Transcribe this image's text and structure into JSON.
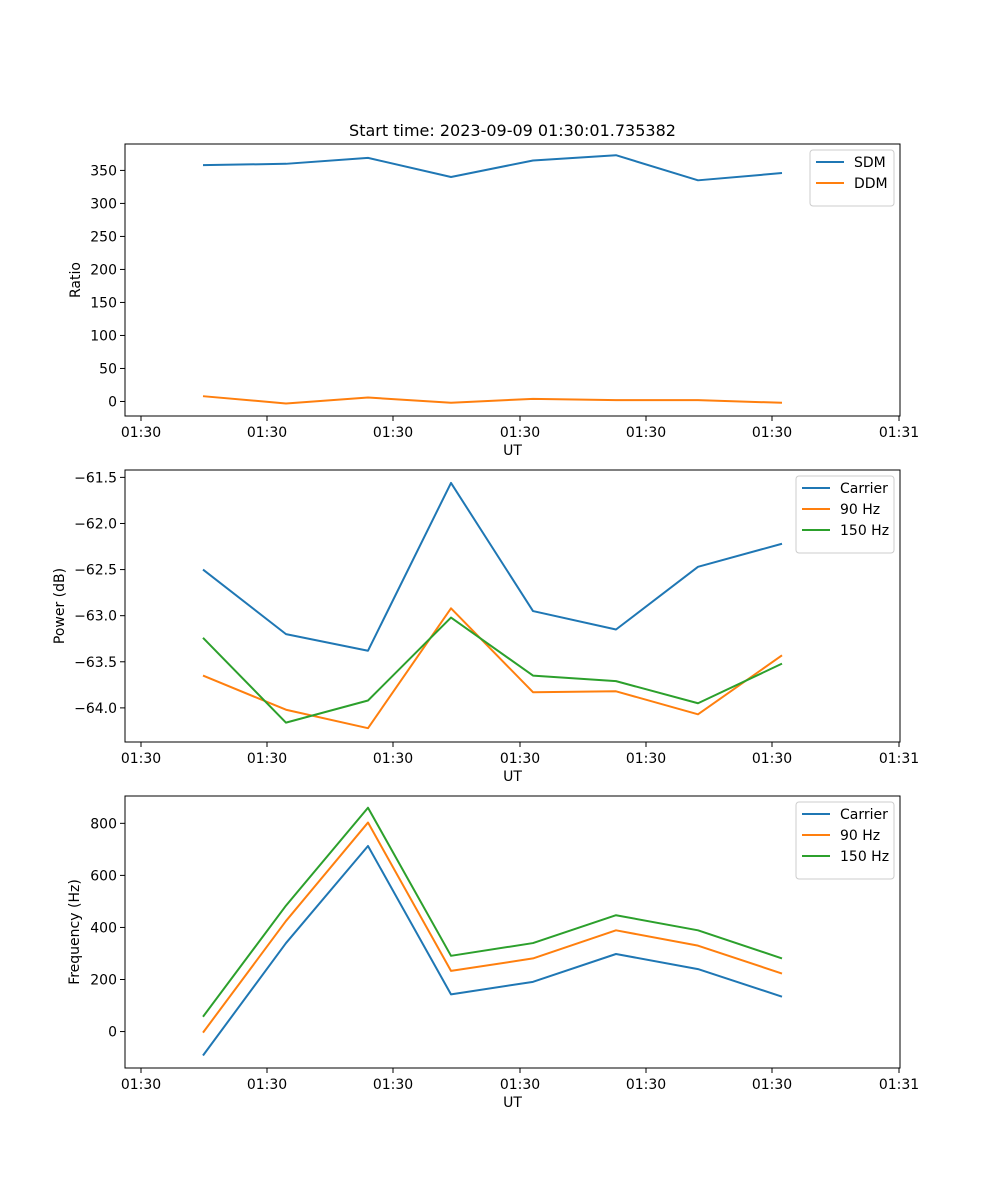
{
  "chart_data": [
    {
      "type": "line",
      "title": "Start time: 2023-09-09 01:30:01.735382",
      "xlabel": "UT",
      "ylabel": "Ratio",
      "x_ticks": [
        "01:30",
        "01:30",
        "01:30",
        "01:30",
        "01:30",
        "01:30",
        "01:31"
      ],
      "y_ticks": [
        0,
        50,
        100,
        150,
        200,
        250,
        300,
        350
      ],
      "y_tick_labels": [
        "0",
        "50",
        "100",
        "150",
        "200",
        "250",
        "300",
        "350"
      ],
      "ylim": [
        -22,
        390
      ],
      "legend": "top-right",
      "series": [
        {
          "name": "SDM",
          "color": "#1f77b4",
          "values": [
            358,
            360,
            369,
            340,
            365,
            373,
            335,
            346
          ]
        },
        {
          "name": "DDM",
          "color": "#ff7f0e",
          "values": [
            8,
            -3,
            6,
            -2,
            4,
            2,
            2,
            -2
          ]
        }
      ]
    },
    {
      "type": "line",
      "title": "",
      "xlabel": "UT",
      "ylabel": "Power (dB)",
      "x_ticks": [
        "01:30",
        "01:30",
        "01:30",
        "01:30",
        "01:30",
        "01:30",
        "01:31"
      ],
      "y_ticks": [
        -64.0,
        -63.5,
        -63.0,
        -62.5,
        -62.0,
        -61.5
      ],
      "y_tick_labels": [
        "−64.0",
        "−63.5",
        "−63.0",
        "−62.5",
        "−62.0",
        "−61.5"
      ],
      "ylim": [
        -64.37,
        -61.42
      ],
      "legend": "top-right",
      "series": [
        {
          "name": "Carrier",
          "color": "#1f77b4",
          "values": [
            -62.5,
            -63.2,
            -63.38,
            -61.56,
            -62.95,
            -63.15,
            -62.47,
            -62.22
          ]
        },
        {
          "name": "90 Hz",
          "color": "#ff7f0e",
          "values": [
            -63.65,
            -64.02,
            -64.22,
            -62.92,
            -63.83,
            -63.82,
            -64.07,
            -63.43
          ]
        },
        {
          "name": "150 Hz",
          "color": "#2ca02c",
          "values": [
            -63.24,
            -64.16,
            -63.92,
            -63.02,
            -63.65,
            -63.71,
            -63.95,
            -63.52
          ]
        }
      ]
    },
    {
      "type": "line",
      "title": "",
      "xlabel": "UT",
      "ylabel": "Frequency (Hz)",
      "x_ticks": [
        "01:30",
        "01:30",
        "01:30",
        "01:30",
        "01:30",
        "01:30",
        "01:31"
      ],
      "y_ticks": [
        0,
        200,
        400,
        600,
        800
      ],
      "y_tick_labels": [
        "0",
        "200",
        "400",
        "600",
        "800"
      ],
      "ylim": [
        -140,
        905
      ],
      "legend": "top-right",
      "series": [
        {
          "name": "Carrier",
          "color": "#1f77b4",
          "values": [
            -92,
            340,
            713,
            143,
            191,
            298,
            240,
            134
          ]
        },
        {
          "name": "90 Hz",
          "color": "#ff7f0e",
          "values": [
            -4,
            425,
            803,
            233,
            281,
            389,
            330,
            223
          ]
        },
        {
          "name": "150 Hz",
          "color": "#2ca02c",
          "values": [
            57,
            484,
            860,
            291,
            340,
            447,
            389,
            281
          ]
        }
      ]
    }
  ]
}
